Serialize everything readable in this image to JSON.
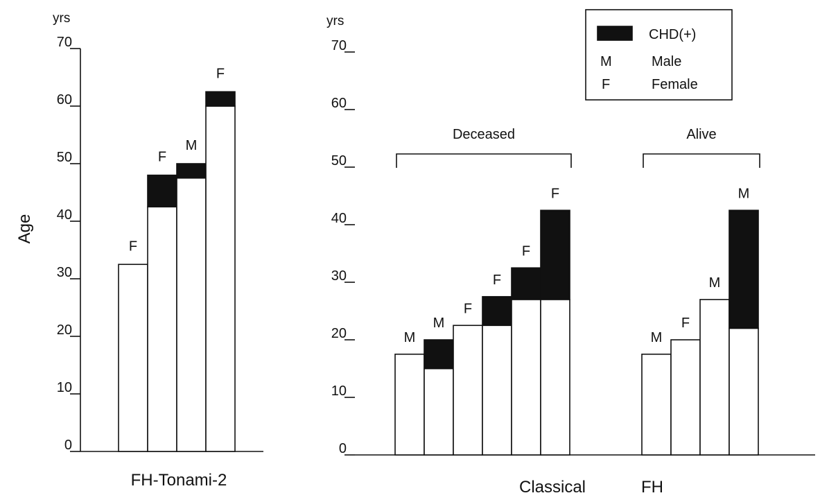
{
  "chart_data": [
    {
      "type": "bar",
      "stacked": true,
      "title": "FH-Tonami-2",
      "ylabel": "Age",
      "yunit": "yrs",
      "ylim": [
        0,
        70
      ],
      "yticks": [
        "0",
        "10",
        "20",
        "30",
        "40",
        "50",
        "60",
        "70"
      ],
      "bars": [
        {
          "sex": "F",
          "open": 32.5,
          "chd": 0
        },
        {
          "sex": "F",
          "open": 42.5,
          "chd": 5.5
        },
        {
          "sex": "M",
          "open": 47.5,
          "chd": 2.5
        },
        {
          "sex": "F",
          "open": 60,
          "chd": 2.5
        }
      ]
    },
    {
      "type": "bar",
      "stacked": true,
      "title": "Classical FH",
      "title_words": [
        "Classical",
        "FH"
      ],
      "yunit": "yrs",
      "ylim": [
        0,
        70
      ],
      "yticks": [
        "0",
        "10",
        "20",
        "30",
        "40",
        "50",
        "60",
        "70"
      ],
      "groups": [
        {
          "label": "Deceased",
          "bars": [
            {
              "sex": "M",
              "open": 17.5,
              "chd": 0
            },
            {
              "sex": "M",
              "open": 15,
              "chd": 5
            },
            {
              "sex": "F",
              "open": 22.5,
              "chd": 0
            },
            {
              "sex": "F",
              "open": 22.5,
              "chd": 5
            },
            {
              "sex": "F",
              "open": 27,
              "chd": 5.5
            },
            {
              "sex": "F",
              "open": 27,
              "chd": 15.5
            }
          ]
        },
        {
          "label": "Alive",
          "bars": [
            {
              "sex": "M",
              "open": 17.5,
              "chd": 0
            },
            {
              "sex": "F",
              "open": 20,
              "chd": 0
            },
            {
              "sex": "M",
              "open": 27,
              "chd": 0
            },
            {
              "sex": "M",
              "open": 22,
              "chd": 20.5
            }
          ]
        }
      ],
      "legend": {
        "items": [
          {
            "symbol": "",
            "label": "CHD(+)"
          },
          {
            "symbol": "M",
            "label": "Male"
          },
          {
            "symbol": "F",
            "label": "Female"
          }
        ]
      }
    }
  ]
}
